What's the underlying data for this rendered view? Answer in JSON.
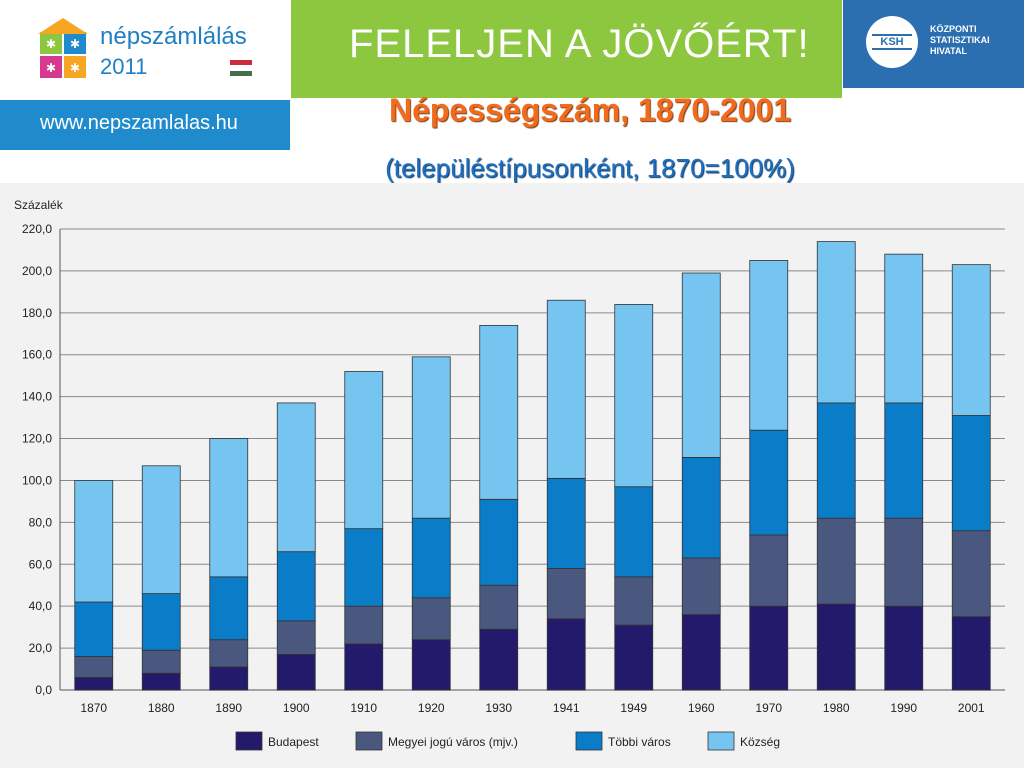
{
  "header": {
    "logo_text": "népszámlálás",
    "logo_year": "2011",
    "url": "www.nepszamlalas.hu",
    "slogan": "FELELJEN A JÖVŐÉRT!",
    "ksh_abbr": "KSH",
    "ksh_name": "KÖZPONTI STATISZTIKAI HIVATAL"
  },
  "colors": {
    "budapest": "#241a6b",
    "megyei": "#4a587f",
    "tobbi": "#0b7cc7",
    "kozseg": "#76c5f0",
    "plot_bg": "#f2f2f2",
    "grid": "#8a8a8a",
    "title_orange": "#f26a1b",
    "subtitle_blue": "#1f6fc1"
  },
  "chart_data": {
    "type": "bar",
    "stacked": true,
    "title": "Népességszám, 1870-2001",
    "subtitle": "(településtípusonként, 1870=100%)",
    "ylabel": "Százalék",
    "xlabel": "",
    "ylim": [
      0,
      220
    ],
    "yticks": [
      "0,0",
      "20,0",
      "40,0",
      "60,0",
      "80,0",
      "100,0",
      "120,0",
      "140,0",
      "160,0",
      "180,0",
      "200,0",
      "220,0"
    ],
    "grid": true,
    "legend_position": "bottom",
    "categories": [
      "1870",
      "1880",
      "1890",
      "1900",
      "1910",
      "1920",
      "1930",
      "1941",
      "1949",
      "1960",
      "1970",
      "1980",
      "1990",
      "2001"
    ],
    "series": [
      {
        "name": "Budapest",
        "values": [
          6,
          8,
          11,
          17,
          22,
          24,
          29,
          34,
          31,
          36,
          40,
          41,
          40,
          35
        ]
      },
      {
        "name": "Megyei jogú város (mjv.)",
        "values": [
          10,
          11,
          13,
          16,
          18,
          20,
          21,
          24,
          23,
          27,
          34,
          41,
          42,
          41
        ]
      },
      {
        "name": "Többi város",
        "values": [
          26,
          27,
          30,
          33,
          37,
          38,
          41,
          43,
          43,
          48,
          50,
          55,
          55,
          55
        ]
      },
      {
        "name": "Község",
        "values": [
          58,
          61,
          66,
          71,
          75,
          77,
          83,
          85,
          87,
          88,
          81,
          77,
          71,
          72
        ]
      }
    ]
  }
}
